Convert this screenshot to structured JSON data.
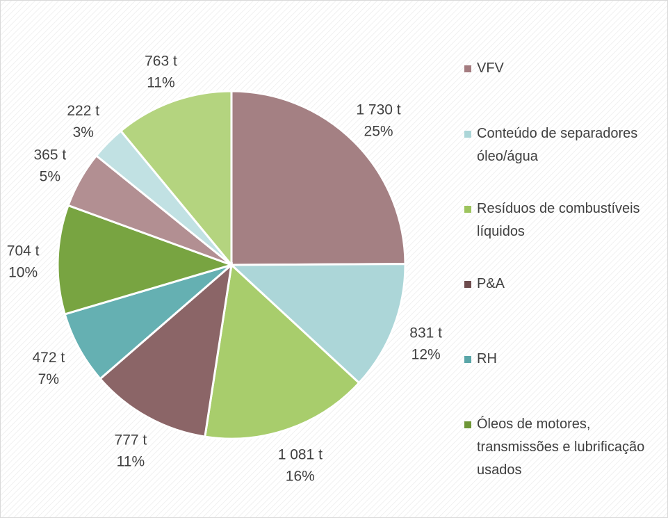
{
  "chart_data": {
    "type": "pie",
    "categories": [
      "VFV",
      "Conteúdo de separadores óleo/água",
      "Resíduos de combustíveis líquidos",
      "P&A",
      "RH",
      "Óleos de motores, transmissões e lubrificação usados",
      null,
      null,
      null
    ],
    "values": [
      1730,
      831,
      1081,
      777,
      472,
      704,
      365,
      222,
      763
    ],
    "value_labels": [
      "1 730 t",
      "831 t",
      "1 081 t",
      "777 t",
      "472 t",
      "704 t",
      "365 t",
      "222 t",
      "763 t"
    ],
    "percents": [
      25,
      12,
      16,
      11,
      7,
      10,
      5,
      3,
      11
    ],
    "percent_labels": [
      "25%",
      "12%",
      "16%",
      "11%",
      "7%",
      "10%",
      "5%",
      "3%",
      "11%"
    ],
    "colors": [
      "#a48083",
      "#acd6d8",
      "#a8cd6c",
      "#8b6567",
      "#65b0b2",
      "#78a441",
      "#b28f92",
      "#c1e1e3",
      "#b4d47f"
    ],
    "legend": [
      {
        "name": "VFV",
        "color": "#a47c80"
      },
      {
        "name": "Conteúdo de separadores óleo/água",
        "color": "#acd6d8"
      },
      {
        "name": "Resíduos de combustíveis líquidos",
        "color": "#9dc45e"
      },
      {
        "name": "P&A",
        "color": "#6d4b4d"
      },
      {
        "name": "RH",
        "color": "#5aa6a8"
      },
      {
        "name": "Óleos de motores, transmissões e lubrificação usados",
        "color": "#6e9637"
      }
    ],
    "legend_position": "right"
  }
}
